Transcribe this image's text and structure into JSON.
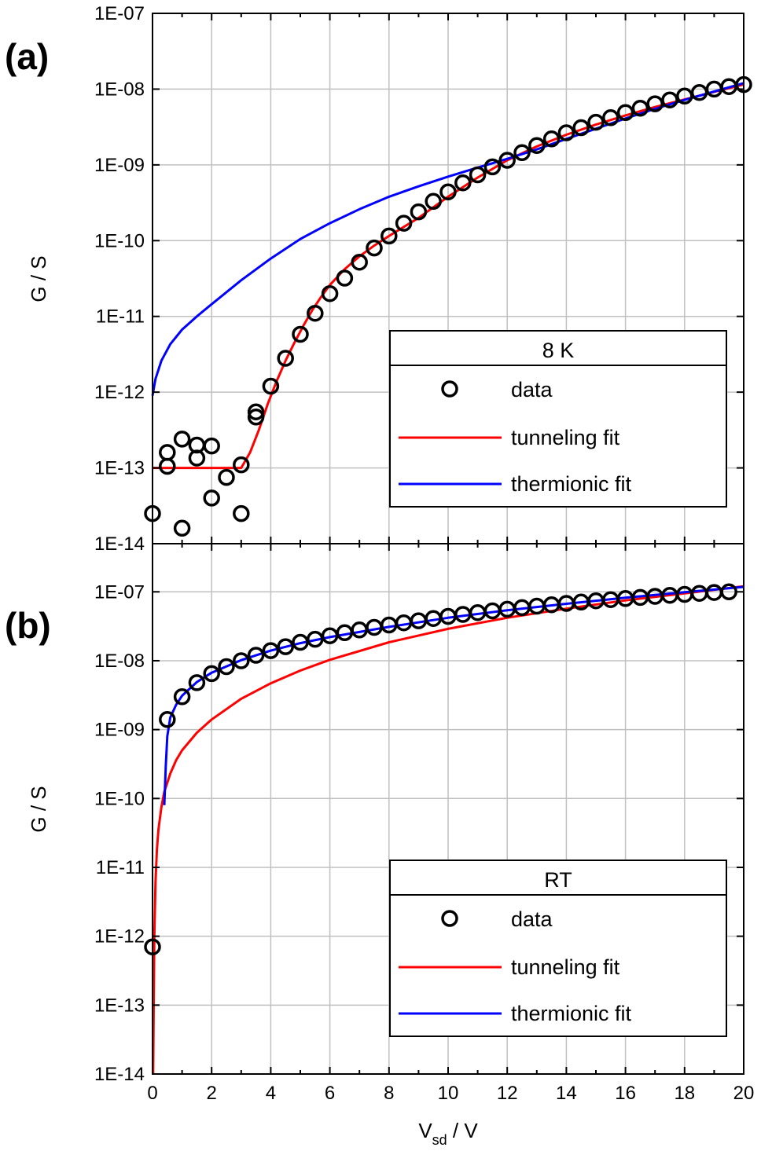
{
  "chart_data": [
    {
      "type": "scatter",
      "panel_label": "(a)",
      "xlabel": "",
      "ylabel": "G / S",
      "xlim": [
        0,
        20
      ],
      "ylim": [
        1e-14,
        1e-07
      ],
      "yscale": "log",
      "grid": true,
      "yticklabels": [
        "1E-14",
        "1E-13",
        "1E-12",
        "1E-11",
        "1E-10",
        "1E-09",
        "1E-08",
        "1E-07"
      ],
      "legend": {
        "title": "8 K",
        "placement": "bottom-right",
        "entries": [
          "data",
          "tunneling fit",
          "thermionic fit"
        ]
      },
      "series": [
        {
          "name": "data",
          "kind": "markers",
          "color": "#000000",
          "x": [
            0,
            0.5,
            0.5,
            1,
            1,
            1.5,
            1.5,
            2,
            2,
            2.5,
            3,
            3,
            3.5,
            3.5,
            4,
            4.5,
            5,
            5.5,
            6,
            6.5,
            7,
            7.5,
            8,
            8.5,
            9,
            9.5,
            10,
            10.5,
            11,
            11.5,
            12,
            12.5,
            13,
            13.5,
            14,
            14.5,
            15,
            15.5,
            16,
            16.5,
            17,
            17.5,
            18,
            18.5,
            19,
            19.5,
            20
          ],
          "y": [
            2.5e-14,
            1.6e-13,
            1.05e-13,
            2.4e-13,
            1.6e-14,
            2e-13,
            1.35e-13,
            1.95e-13,
            4e-14,
            7.5e-14,
            1.1e-13,
            2.5e-14,
            4.7e-13,
            5.5e-13,
            1.2e-12,
            2.8e-12,
            5.8e-12,
            1.1e-11,
            2e-11,
            3.2e-11,
            5.2e-11,
            8e-11,
            1.15e-10,
            1.7e-10,
            2.4e-10,
            3.3e-10,
            4.4e-10,
            5.8e-10,
            7.4e-10,
            9.4e-10,
            1.15e-09,
            1.45e-09,
            1.8e-09,
            2.2e-09,
            2.65e-09,
            3.1e-09,
            3.65e-09,
            4.2e-09,
            4.9e-09,
            5.6e-09,
            6.4e-09,
            7.2e-09,
            8.1e-09,
            9e-09,
            1e-08,
            1.08e-08,
            1.15e-08
          ]
        },
        {
          "name": "tunneling fit",
          "kind": "line",
          "color": "#ff0000",
          "x": [
            0,
            3.0,
            3.3,
            3.6,
            3.9,
            4.2,
            4.5,
            4.8,
            5.1,
            5.4,
            5.7,
            6.0,
            6.5,
            7.0,
            7.5,
            8.0,
            9.0,
            10.0,
            11.0,
            12.0,
            13.0,
            14.0,
            15.0,
            16.0,
            17.0,
            18.0,
            19.0,
            20.0
          ],
          "y": [
            1e-13,
            1e-13,
            1.6e-13,
            3.2e-13,
            7e-13,
            1.4e-12,
            2.6e-12,
            4.5e-12,
            7.5e-12,
            1.2e-11,
            1.8e-11,
            2.6e-11,
            4.2e-11,
            6.2e-11,
            8.6e-11,
            1.15e-10,
            2e-10,
            3.8e-10,
            6.8e-10,
            1.15e-09,
            1.75e-09,
            2.5e-09,
            3.4e-09,
            4.5e-09,
            5.8e-09,
            7.3e-09,
            9.2e-09,
            1.15e-08
          ]
        },
        {
          "name": "thermionic fit",
          "kind": "line",
          "color": "#0000ff",
          "x": [
            0,
            0.1,
            0.3,
            0.6,
            1.0,
            1.5,
            2.0,
            3.0,
            4.0,
            5.0,
            6.0,
            7.0,
            8.0,
            9.0,
            10.0,
            11.0,
            12.0,
            13.0,
            14.0,
            15.0,
            16.0,
            17.0,
            18.0,
            19.0,
            20.0
          ],
          "y": [
            9e-13,
            1.5e-12,
            2.6e-12,
            4.3e-12,
            6.7e-12,
            1e-11,
            1.45e-11,
            3e-11,
            5.8e-11,
            1.05e-10,
            1.7e-10,
            2.6e-10,
            3.8e-10,
            5.2e-10,
            7e-10,
            9.2e-10,
            1.2e-09,
            1.6e-09,
            2.2e-09,
            3e-09,
            4.1e-09,
            5.5e-09,
            7.2e-09,
            9.3e-09,
            1.2e-08
          ]
        }
      ]
    },
    {
      "type": "scatter",
      "panel_label": "(b)",
      "xlabel": "V_sd / V",
      "ylabel": "G / S",
      "xlim": [
        0,
        20
      ],
      "ylim": [
        1e-14,
        5e-07
      ],
      "yscale": "log",
      "grid": true,
      "xticklabels": [
        "0",
        "2",
        "4",
        "6",
        "8",
        "10",
        "12",
        "14",
        "16",
        "18",
        "20"
      ],
      "yticklabels": [
        "1E-14",
        "1E-13",
        "1E-12",
        "1E-11",
        "1E-10",
        "1E-09",
        "1E-08",
        "1E-07"
      ],
      "legend": {
        "title": "RT",
        "placement": "bottom-right",
        "entries": [
          "data",
          "tunneling fit",
          "thermionic fit"
        ]
      },
      "series": [
        {
          "name": "data",
          "kind": "markers",
          "color": "#000000",
          "x": [
            0,
            0.5,
            1,
            1.5,
            2,
            2.5,
            3,
            3.5,
            4,
            4.5,
            5,
            5.5,
            6,
            6.5,
            7,
            7.5,
            8,
            8.5,
            9,
            9.5,
            10,
            10.5,
            11,
            11.5,
            12,
            12.5,
            13,
            13.5,
            14,
            14.5,
            15,
            15.5,
            16,
            16.5,
            17,
            17.5,
            18,
            18.5,
            19,
            19.5
          ],
          "y": [
            7e-13,
            1.4e-09,
            3e-09,
            4.8e-09,
            6.5e-09,
            8.2e-09,
            1e-08,
            1.2e-08,
            1.4e-08,
            1.6e-08,
            1.85e-08,
            2.05e-08,
            2.3e-08,
            2.55e-08,
            2.8e-08,
            3.05e-08,
            3.3e-08,
            3.55e-08,
            3.8e-08,
            4.1e-08,
            4.4e-08,
            4.7e-08,
            5e-08,
            5.3e-08,
            5.6e-08,
            5.9e-08,
            6.2e-08,
            6.5e-08,
            6.8e-08,
            7.1e-08,
            7.4e-08,
            7.7e-08,
            8e-08,
            8.3e-08,
            8.6e-08,
            8.9e-08,
            9.2e-08,
            9.5e-08,
            9.8e-08,
            1e-07
          ]
        },
        {
          "name": "tunneling fit",
          "kind": "line",
          "color": "#ff0000",
          "x": [
            0.02,
            0.04,
            0.06,
            0.1,
            0.15,
            0.2,
            0.3,
            0.4,
            0.6,
            0.8,
            1.0,
            1.5,
            2.0,
            3.0,
            4.0,
            5.0,
            6.0,
            8.0,
            10.0,
            12.0,
            14.0,
            16.0,
            18.0,
            20.0
          ],
          "y": [
            1e-14,
            1e-13,
            1e-12,
            6e-12,
            1.8e-11,
            3.5e-11,
            7.5e-11,
            1.25e-10,
            2.3e-10,
            3.6e-10,
            5e-10,
            9e-10,
            1.4e-09,
            2.8e-09,
            4.7e-09,
            7.2e-09,
            1.03e-08,
            1.85e-08,
            2.9e-08,
            4.2e-08,
            5.7e-08,
            7.5e-08,
            9.5e-08,
            1.2e-07
          ]
        },
        {
          "name": "thermionic fit",
          "kind": "line",
          "color": "#0000ff",
          "x": [
            0.4,
            0.45,
            0.5,
            0.6,
            0.8,
            1.0,
            1.5,
            2.0,
            3.0,
            4.0,
            5.0,
            6.0,
            8.0,
            10.0,
            12.0,
            14.0,
            16.0,
            18.0,
            20.0
          ],
          "y": [
            8e-11,
            3e-10,
            8e-10,
            1.5e-09,
            2.3e-09,
            3.1e-09,
            4.9e-09,
            6.7e-09,
            1.02e-08,
            1.4e-08,
            1.8e-08,
            2.2e-08,
            3.1e-08,
            4.2e-08,
            5.4e-08,
            6.7e-08,
            8.2e-08,
            9.9e-08,
            1.18e-07
          ]
        }
      ]
    }
  ]
}
